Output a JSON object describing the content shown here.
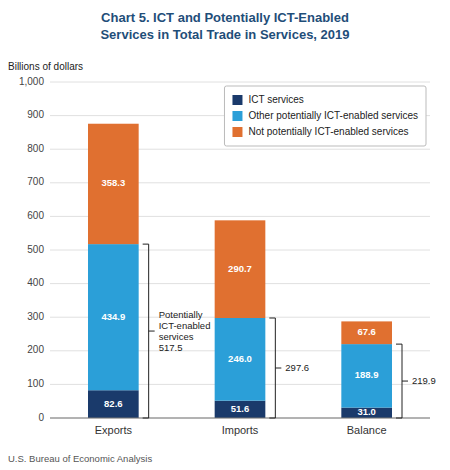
{
  "chart_data": {
    "type": "bar",
    "stacked": true,
    "title": "Chart 5. ICT and Potentially ICT-Enabled\nServices in Total Trade in Services, 2019",
    "ylabel": "Billions of dollars",
    "source": "U.S. Bureau of Economic Analysis",
    "categories": [
      "Exports",
      "Imports",
      "Balance"
    ],
    "series": [
      {
        "name": "ICT services",
        "color": "#1a3a6b",
        "values": [
          82.6,
          51.6,
          31.0
        ],
        "value_labels": [
          "82.6",
          "51.6",
          "31.0"
        ]
      },
      {
        "name": "Other potentially ICT-enabled services",
        "color": "#2b9fd8",
        "values": [
          434.9,
          246.0,
          188.9
        ],
        "value_labels": [
          "434.9",
          "246.0",
          "188.9"
        ]
      },
      {
        "name": "Not potentially ICT-enabled services",
        "color": "#e07030",
        "values": [
          358.3,
          290.7,
          67.6
        ]
      }
    ],
    "annotations": [
      {
        "category": "Exports",
        "text": "Potentially\nICT-enabled\nservices",
        "value": 517.5
      },
      {
        "category": "Imports",
        "value": 297.6
      },
      {
        "category": "Balance",
        "value": 219.9
      }
    ],
    "ylim": [
      0,
      1000
    ],
    "yticks": [
      0,
      100,
      200,
      300,
      400,
      500,
      600,
      700,
      800,
      900,
      {
        "value": 1000,
        "label": "1,000"
      }
    ],
    "grid": true,
    "legend": "upper right",
    "data_labels": true
  }
}
